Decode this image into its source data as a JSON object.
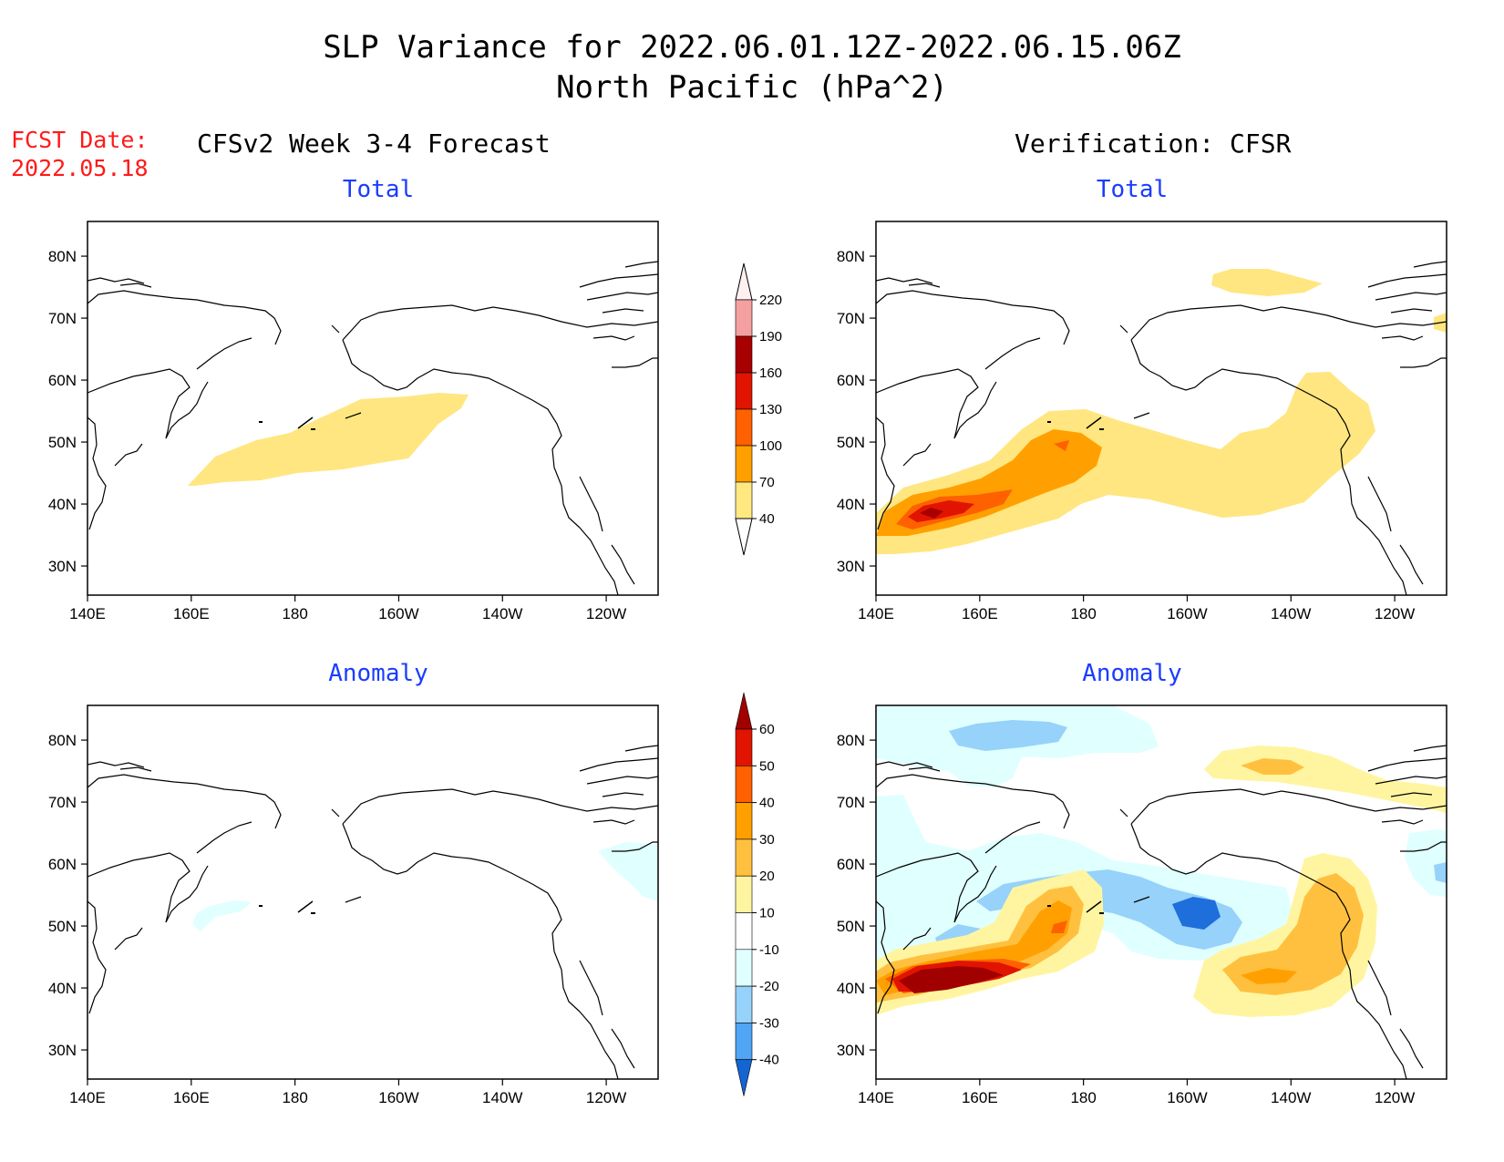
{
  "title": {
    "line1": "SLP Variance for 2022.06.01.12Z-2022.06.15.06Z",
    "line2": "North Pacific (hPa^2)"
  },
  "fcst": {
    "line1": "FCST Date:",
    "line2": "2022.05.18"
  },
  "columns": {
    "left": "CFSv2 Week 3-4 Forecast",
    "right": "Verification: CFSR"
  },
  "panels": {
    "top_left": "Total",
    "top_right": "Total",
    "bottom_left": "Anomaly",
    "bottom_right": "Anomaly"
  },
  "axes": {
    "lat_labels": [
      "80N",
      "70N",
      "60N",
      "50N",
      "40N",
      "30N"
    ],
    "lon_labels": [
      "140E",
      "160E",
      "180",
      "160W",
      "140W",
      "120W"
    ]
  },
  "colorbars": {
    "total": {
      "labels": [
        "220",
        "190",
        "160",
        "130",
        "100",
        "70",
        "40"
      ],
      "colors": [
        "#fff0f0",
        "#f4a0a0",
        "#a80000",
        "#e01400",
        "#ff6000",
        "#ffa000",
        "#ffe880",
        "#ffffff"
      ]
    },
    "anomaly": {
      "labels": [
        "60",
        "50",
        "40",
        "30",
        "20",
        "10",
        "-10",
        "-20",
        "-30",
        "-40"
      ],
      "colors": [
        "#a00000",
        "#e01400",
        "#ff6000",
        "#ffa000",
        "#ffc040",
        "#fff5a0",
        "#ffffff",
        "#e0ffff",
        "#96d2fa",
        "#50a5f5",
        "#1464d2"
      ]
    }
  }
}
